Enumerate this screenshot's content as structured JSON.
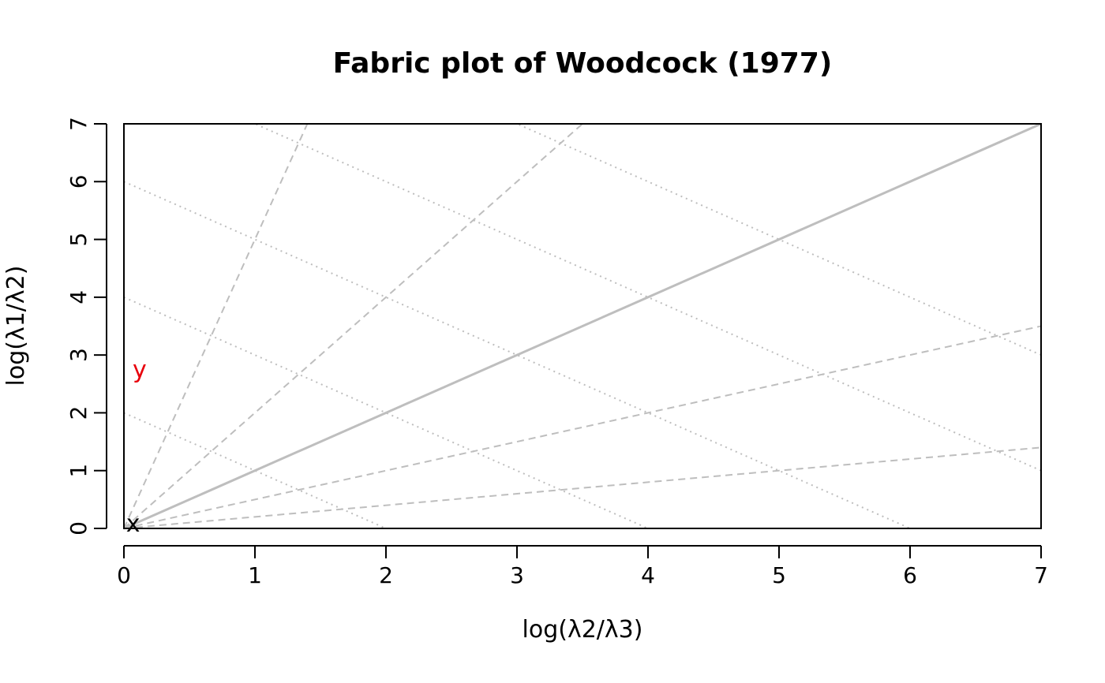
{
  "chart_data": {
    "type": "scatter",
    "title": "Fabric plot of Woodcock (1977)",
    "xlabel": "log(λ2/λ3)",
    "ylabel": "log(λ1/λ2)",
    "xlim": [
      0,
      7
    ],
    "ylim": [
      0,
      7
    ],
    "xticks": [
      "0",
      "1",
      "2",
      "3",
      "4",
      "5",
      "6",
      "7"
    ],
    "yticks": [
      "0",
      "1",
      "2",
      "3",
      "4",
      "5",
      "6",
      "7"
    ],
    "points": [
      {
        "label": "x",
        "x": 0.07,
        "y": 0.08,
        "color": "#000000"
      },
      {
        "label": "y",
        "x": 0.12,
        "y": 2.75,
        "color": "#e8000b"
      }
    ],
    "reference_lines": {
      "color": "#bebebe",
      "solid_slopes": [
        1
      ],
      "dashed_slopes": [
        5,
        2,
        0.5,
        0.2
      ],
      "dotted_intercepts": [
        2,
        4,
        6,
        8,
        10
      ]
    }
  }
}
